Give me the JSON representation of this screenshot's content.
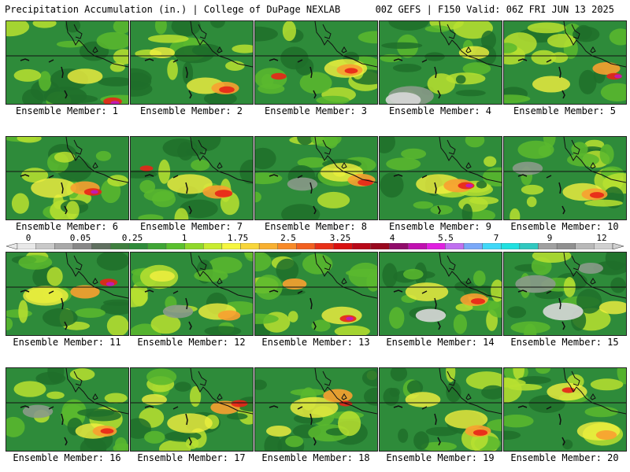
{
  "header": {
    "title_left": "Precipitation Accumulation (in.) | College of DuPage NEXLAB",
    "title_right": "00Z GEFS | F150 Valid: 06Z FRI JUN 13 2025"
  },
  "panels": [
    {
      "label": "Ensemble Member: 1"
    },
    {
      "label": "Ensemble Member: 2"
    },
    {
      "label": "Ensemble Member: 3"
    },
    {
      "label": "Ensemble Member: 4"
    },
    {
      "label": "Ensemble Member: 5"
    },
    {
      "label": "Ensemble Member: 6"
    },
    {
      "label": "Ensemble Member: 7"
    },
    {
      "label": "Ensemble Member: 8"
    },
    {
      "label": "Ensemble Member: 9"
    },
    {
      "label": "Ensemble Member: 10"
    },
    {
      "label": "Ensemble Member: 11"
    },
    {
      "label": "Ensemble Member: 12"
    },
    {
      "label": "Ensemble Member: 13"
    },
    {
      "label": "Ensemble Member: 14"
    },
    {
      "label": "Ensemble Member: 15"
    },
    {
      "label": "Ensemble Member: 16"
    },
    {
      "label": "Ensemble Member: 17"
    },
    {
      "label": "Ensemble Member: 18"
    },
    {
      "label": "Ensemble Member: 19"
    },
    {
      "label": "Ensemble Member: 20"
    }
  ],
  "colorbar": {
    "tick_labels": [
      "0",
      "0.05",
      "0.25",
      "1",
      "1.75",
      "2.5",
      "3.25",
      "4",
      "5.5",
      "7",
      "9",
      "12"
    ],
    "colors": [
      "#e8e8e8",
      "#c8c8c8",
      "#a8a8a8",
      "#888888",
      "#607060",
      "#3f7f3f",
      "#2e8b3a",
      "#3fa535",
      "#5ac02e",
      "#8fd82a",
      "#c8ec30",
      "#f6f640",
      "#f8d63a",
      "#f8b030",
      "#f88a28",
      "#f26020",
      "#e83018",
      "#d81010",
      "#b80818",
      "#98081e",
      "#900c6a",
      "#c010b0",
      "#e020e0",
      "#c070f0",
      "#7aa8f8",
      "#40d8f8",
      "#20e0e0",
      "#30c8c0",
      "#a0a0a0",
      "#909090",
      "#b8b8b8",
      "#d0d0d0"
    ]
  },
  "palette": {
    "base": "#2e8b3a",
    "dark_green": "#1f6f2a",
    "light_green": "#5ab82e",
    "yellow_green": "#b8e030",
    "yellow": "#f4f040",
    "orange": "#f8a030",
    "red": "#e82418",
    "magenta": "#c018c0",
    "gray": "#8a9a8a",
    "light_gray": "#d8d8d8"
  }
}
